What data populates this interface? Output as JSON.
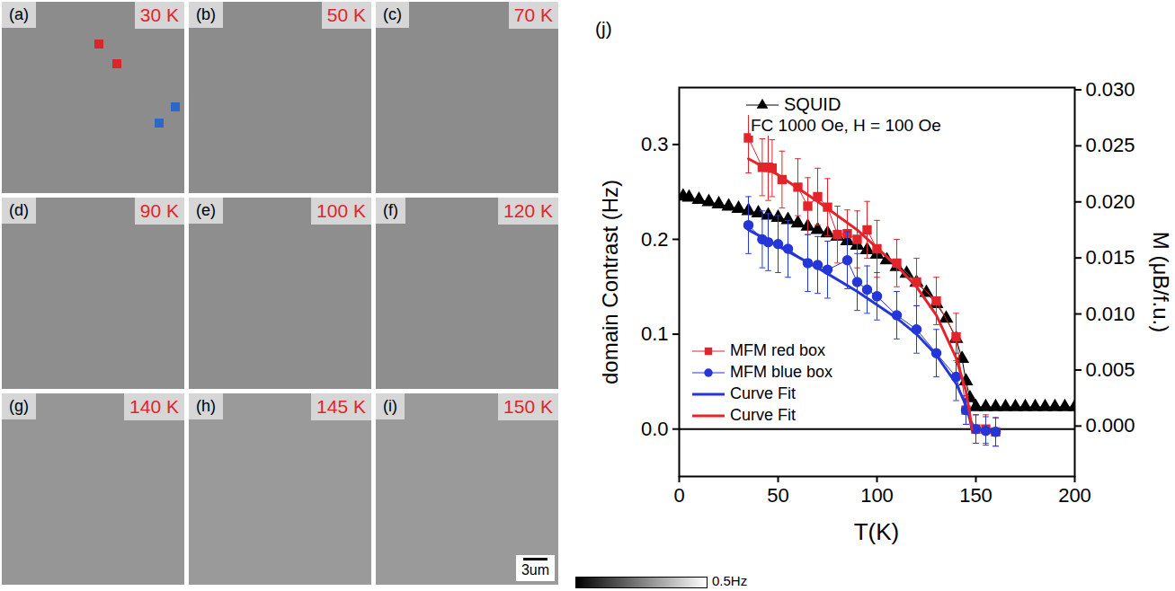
{
  "panels": [
    {
      "letter": "(a)",
      "temperature": "30 K"
    },
    {
      "letter": "(b)",
      "temperature": "50 K"
    },
    {
      "letter": "(c)",
      "temperature": "70 K"
    },
    {
      "letter": "(d)",
      "temperature": "90 K"
    },
    {
      "letter": "(e)",
      "temperature": "100 K"
    },
    {
      "letter": "(f)",
      "temperature": "120 K"
    },
    {
      "letter": "(g)",
      "temperature": "140 K"
    },
    {
      "letter": "(h)",
      "temperature": "145 K"
    },
    {
      "letter": "(i)",
      "temperature": "150 K"
    }
  ],
  "scale_bar": "3um",
  "colorbar": {
    "label": "0.5Hz"
  },
  "chart_data": {
    "type": "line",
    "panel": "(j)",
    "x_label": "T(K)",
    "y_label": "domain Contrast (Hz)",
    "y2_label": "M (μB/f.u.)",
    "xlim": [
      0,
      200
    ],
    "xticks": [
      0,
      50,
      100,
      150,
      200
    ],
    "ylim": [
      -0.05,
      0.36
    ],
    "yticks": [
      {
        "value": 0,
        "label": "0.0"
      },
      0.1,
      0.2,
      0.3
    ],
    "y2lim": [
      -0.0045,
      0.0302
    ],
    "y2ticks": [
      {
        "value": 0,
        "label": "0.000"
      },
      0.005,
      {
        "value": 0.01,
        "label": "0.010"
      },
      0.015,
      {
        "value": 0.02,
        "label": "0.020"
      },
      0.025,
      {
        "value": 0.03,
        "label": "0.030"
      }
    ],
    "hlines": [
      0
    ],
    "annotations": [
      {
        "text": "FC 1000 Oe, H = 100 Oe"
      }
    ],
    "legend": "lower left",
    "series": [
      {
        "name": "SQUID",
        "axis": "y2",
        "color": "#000000",
        "marker": "triangle",
        "line_style": "solid",
        "x": [
          2,
          5,
          10,
          15,
          20,
          25,
          30,
          35,
          40,
          45,
          50,
          55,
          60,
          65,
          70,
          75,
          80,
          85,
          90,
          95,
          100,
          105,
          110,
          115,
          120,
          125,
          130,
          135,
          140,
          143,
          145,
          147,
          150,
          155,
          160,
          165,
          170,
          175,
          180,
          185,
          190,
          195,
          200
        ],
        "values": [
          0.0205,
          0.0204,
          0.0202,
          0.02,
          0.0198,
          0.0196,
          0.0194,
          0.0192,
          0.019,
          0.0188,
          0.0186,
          0.0184,
          0.0181,
          0.0178,
          0.0175,
          0.0172,
          0.0169,
          0.0165,
          0.0161,
          0.0157,
          0.0153,
          0.0148,
          0.0142,
          0.0136,
          0.0128,
          0.0119,
          0.0109,
          0.0096,
          0.0078,
          0.006,
          0.004,
          0.0025,
          0.0017,
          0.0017,
          0.0017,
          0.0017,
          0.0017,
          0.0017,
          0.0017,
          0.0017,
          0.0017,
          0.0017,
          0.0017
        ]
      },
      {
        "name": "MFM red box",
        "color": "#e3242b",
        "marker": "square",
        "line_style": "solid",
        "x": [
          35,
          42,
          45,
          47,
          52,
          60,
          65,
          70,
          75,
          80,
          85,
          90,
          95,
          100,
          110,
          120,
          130,
          140,
          145,
          150,
          155,
          160
        ],
        "values": [
          0.307,
          0.276,
          0.276,
          0.275,
          0.263,
          0.255,
          0.235,
          0.245,
          0.234,
          0.205,
          0.206,
          0.2,
          0.21,
          0.19,
          0.175,
          0.155,
          0.135,
          0.097,
          0.02,
          0.0,
          0.0,
          -0.003
        ],
        "errors": [
          0.037,
          0.03,
          0.035,
          0.03,
          0.03,
          0.03,
          0.03,
          0.03,
          0.03,
          0.03,
          0.025,
          0.03,
          0.03,
          0.03,
          0.025,
          0.025,
          0.025,
          0.025,
          0.015,
          0.015,
          0.015,
          0.015
        ]
      },
      {
        "name": "MFM blue box",
        "color": "#2536d9",
        "marker": "circle",
        "line_style": "solid",
        "x": [
          35,
          42,
          45,
          50,
          55,
          65,
          70,
          75,
          85,
          90,
          95,
          100,
          110,
          120,
          130,
          140,
          145,
          150,
          155,
          160
        ],
        "values": [
          0.215,
          0.2,
          0.197,
          0.195,
          0.19,
          0.175,
          0.173,
          0.168,
          0.178,
          0.155,
          0.147,
          0.14,
          0.12,
          0.105,
          0.08,
          0.055,
          0.02,
          0.0,
          -0.002,
          -0.003
        ],
        "errors": [
          0.03,
          0.03,
          0.03,
          0.03,
          0.03,
          0.03,
          0.03,
          0.03,
          0.03,
          0.03,
          0.025,
          0.025,
          0.025,
          0.025,
          0.025,
          0.025,
          0.015,
          0.015,
          0.015,
          0.015
        ]
      },
      {
        "name": "Curve Fit",
        "color": "#2536d9",
        "marker": "none",
        "line_style": "solid",
        "x": [
          35,
          50,
          70,
          90,
          110,
          120,
          130,
          140,
          145,
          147,
          148
        ],
        "values": [
          0.21,
          0.193,
          0.17,
          0.145,
          0.117,
          0.1,
          0.078,
          0.048,
          0.025,
          0.01,
          0.0
        ]
      },
      {
        "name": "Curve Fit",
        "color": "#e3242b",
        "marker": "none",
        "line_style": "solid",
        "x": [
          35,
          50,
          70,
          90,
          110,
          120,
          130,
          140,
          145,
          147,
          148
        ],
        "values": [
          0.285,
          0.268,
          0.24,
          0.21,
          0.172,
          0.15,
          0.12,
          0.075,
          0.04,
          0.015,
          0.0
        ]
      }
    ]
  }
}
